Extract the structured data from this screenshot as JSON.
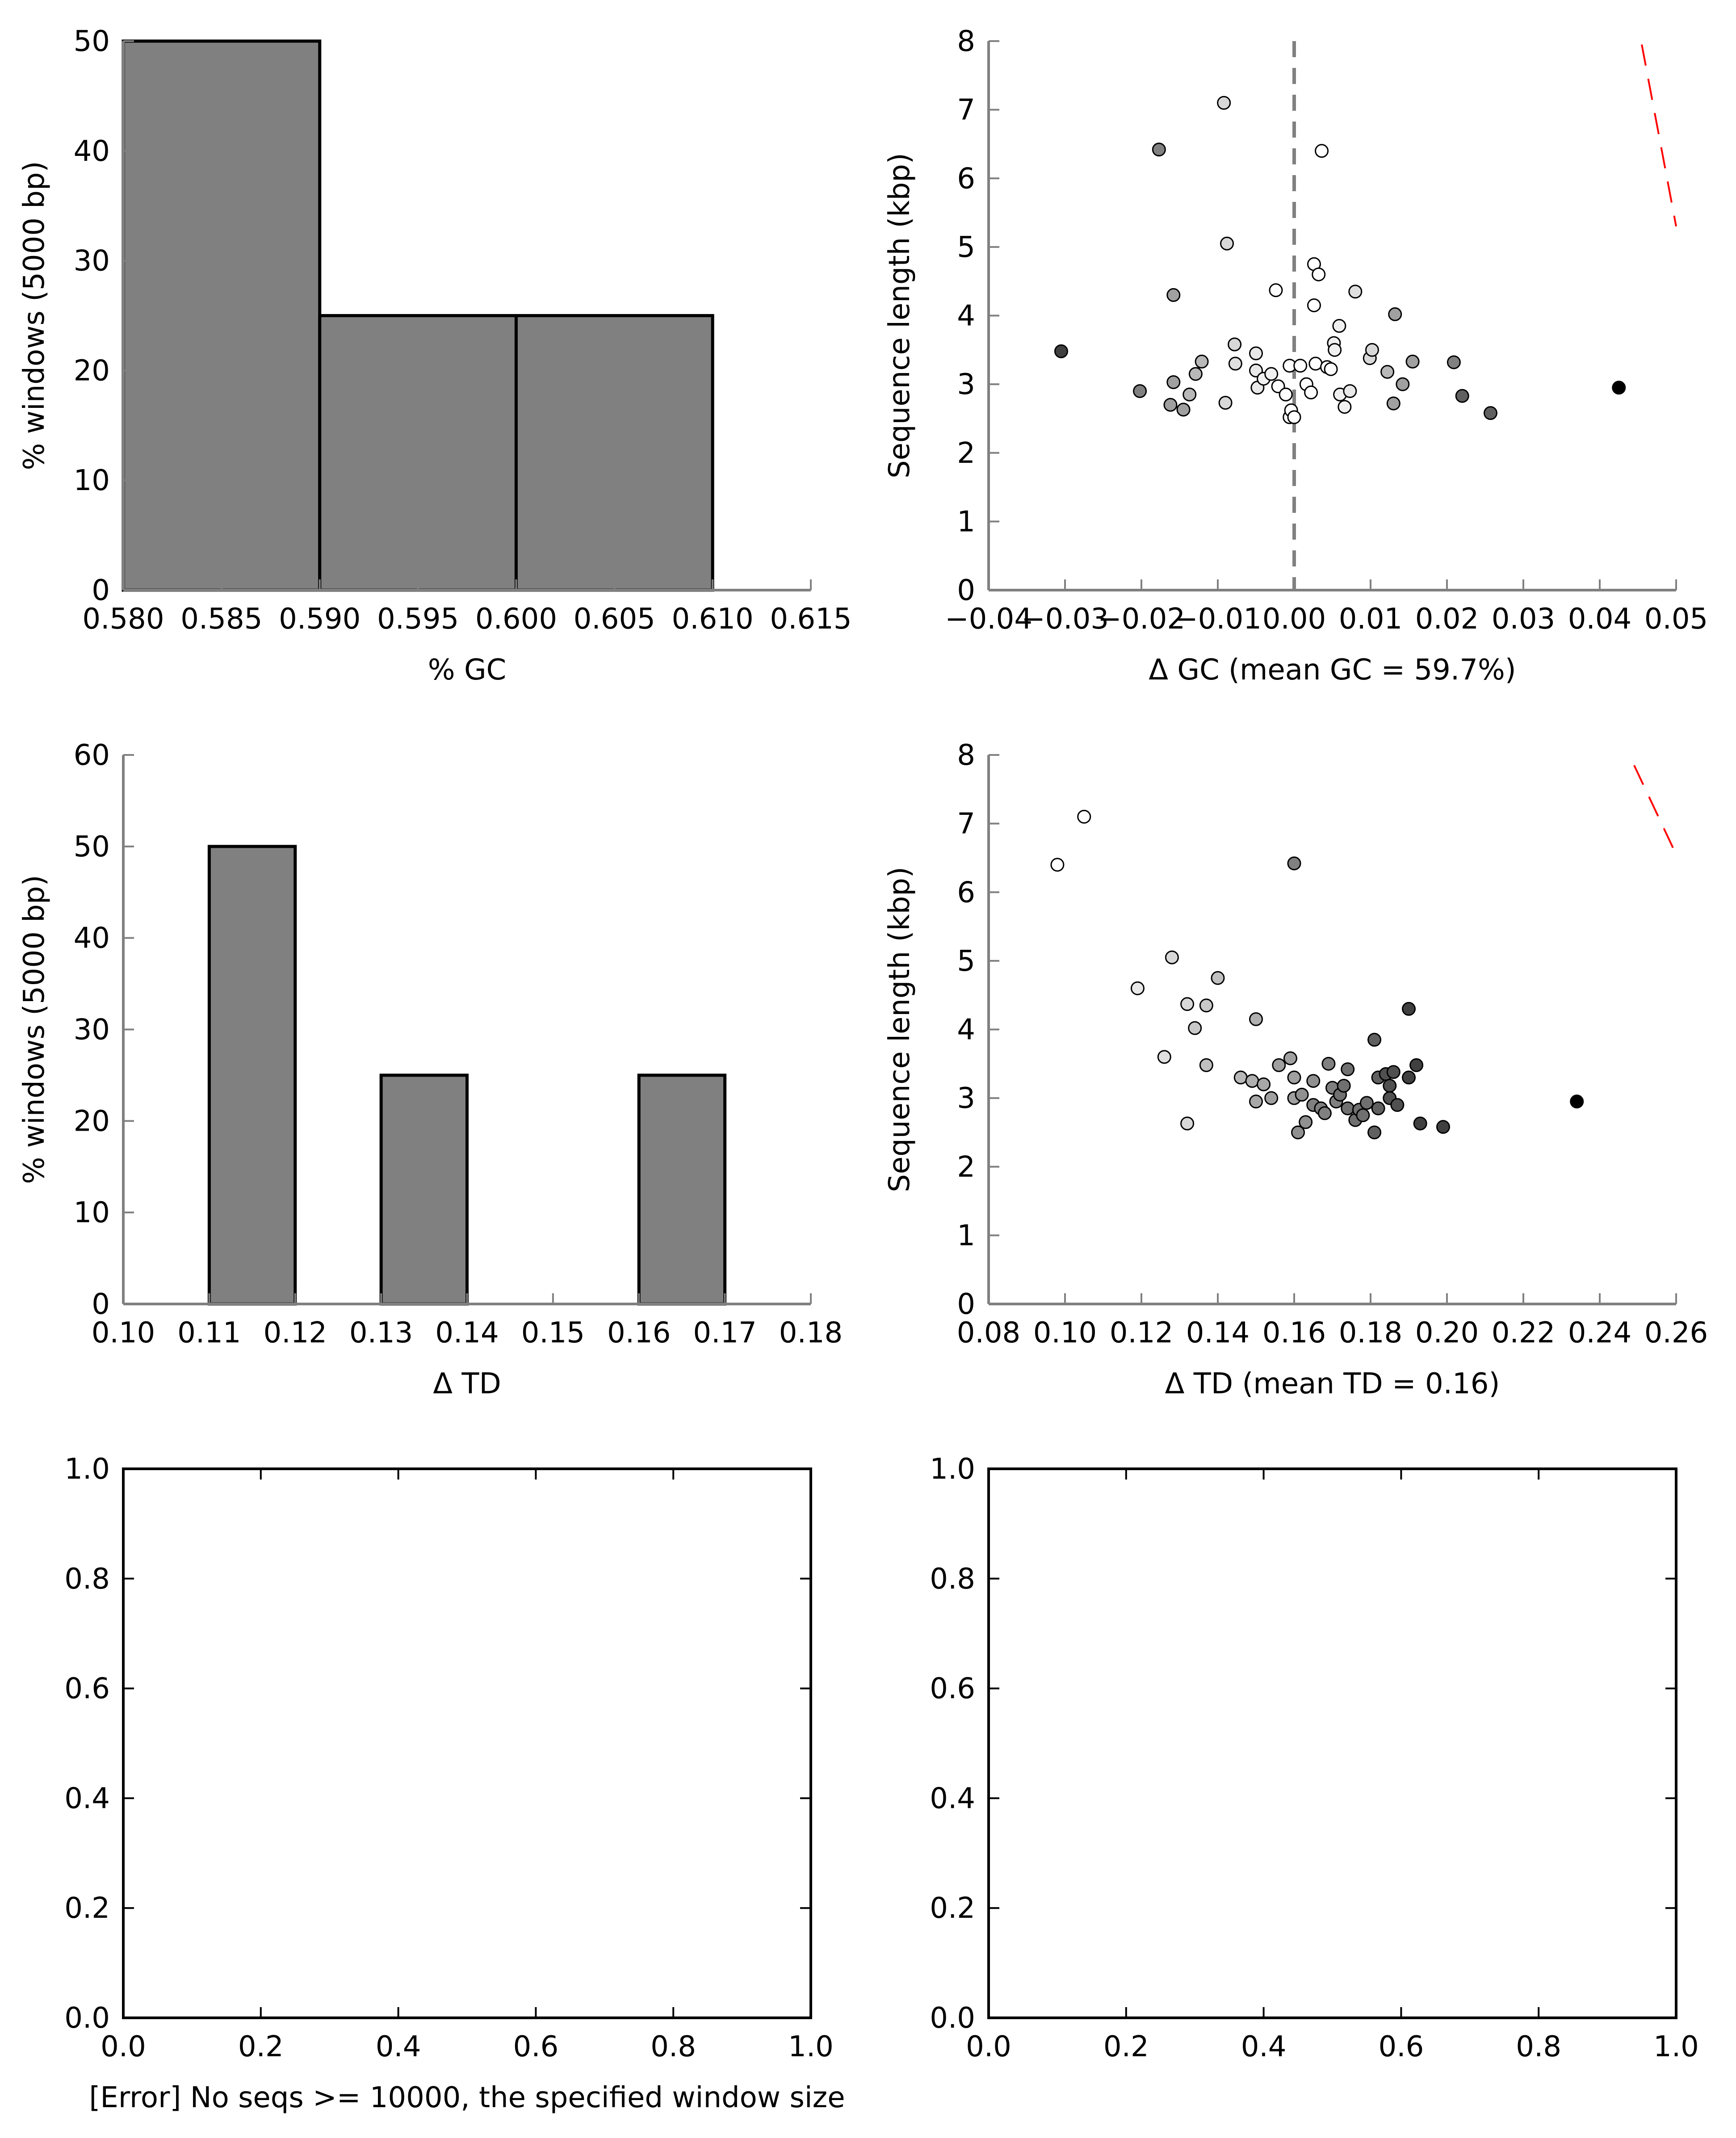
{
  "chart_data": [
    {
      "type": "bar",
      "panel": "gc-histogram",
      "xlabel": "% GC",
      "ylabel": "% windows (5000 bp)",
      "xlim": [
        0.58,
        0.615
      ],
      "ylim": [
        0,
        50
      ],
      "xticks": [
        "0.580",
        "0.585",
        "0.590",
        "0.595",
        "0.600",
        "0.605",
        "0.610",
        "0.615"
      ],
      "yticks": [
        "0",
        "10",
        "20",
        "30",
        "40",
        "50"
      ],
      "bins": [
        {
          "x0": 0.58,
          "x1": 0.59,
          "value": 50
        },
        {
          "x0": 0.59,
          "x1": 0.6,
          "value": 25
        },
        {
          "x0": 0.6,
          "x1": 0.61,
          "value": 25
        }
      ],
      "bar_color": "#808080"
    },
    {
      "type": "scatter",
      "panel": "gc-scatter",
      "xlabel": "Δ GC (mean GC = 59.7%)",
      "ylabel": "Sequence length (kbp)",
      "xlim": [
        -0.04,
        0.05
      ],
      "ylim": [
        0,
        8
      ],
      "xticks": [
        "−0.04",
        "−0.03",
        "−0.02",
        "−0.01",
        "0.00",
        "0.01",
        "0.02",
        "0.03",
        "0.04",
        "0.05"
      ],
      "yticks": [
        "0",
        "1",
        "2",
        "3",
        "4",
        "5",
        "6",
        "7",
        "8"
      ],
      "vline_x": 0.0,
      "trend_line": {
        "color": "#ff0000",
        "points": [
          [
            0.0455,
            7.95
          ],
          [
            0.05,
            5.3
          ]
        ]
      },
      "points": [
        [
          -0.0305,
          3.48,
          "#404040"
        ],
        [
          -0.0202,
          2.9,
          "#808080"
        ],
        [
          -0.0177,
          6.42,
          "#808080"
        ],
        [
          -0.0162,
          2.7,
          "#a0a0a0"
        ],
        [
          -0.0158,
          3.03,
          "#a0a0a0"
        ],
        [
          -0.0158,
          4.3,
          "#a0a0a0"
        ],
        [
          -0.0145,
          2.63,
          "#a0a0a0"
        ],
        [
          -0.0137,
          2.85,
          "#b8b8b8"
        ],
        [
          -0.0129,
          3.15,
          "#b8b8b8"
        ],
        [
          -0.0121,
          3.33,
          "#b8b8b8"
        ],
        [
          -0.0092,
          7.1,
          "#d8d8d8"
        ],
        [
          -0.009,
          2.73,
          "#d8d8d8"
        ],
        [
          -0.0088,
          5.05,
          "#d8d8d8"
        ],
        [
          -0.0078,
          3.58,
          "#d8d8d8"
        ],
        [
          -0.0077,
          3.3,
          "#e0e0e0"
        ],
        [
          -0.005,
          3.45,
          "#e8e8e8"
        ],
        [
          -0.005,
          3.2,
          "#e8e8e8"
        ],
        [
          -0.0048,
          2.95,
          "#e8e8e8"
        ],
        [
          -0.004,
          3.08,
          "#f0f0f0"
        ],
        [
          -0.003,
          3.15,
          "#f0f0f0"
        ],
        [
          -0.0024,
          4.37,
          "#ffffff"
        ],
        [
          -0.0021,
          2.97,
          "#ffffff"
        ],
        [
          -0.0011,
          2.85,
          "#ffffff"
        ],
        [
          -0.0006,
          3.27,
          "#ffffff"
        ],
        [
          -0.0006,
          2.52,
          "#ffffff"
        ],
        [
          -0.0004,
          2.62,
          "#ffffff"
        ],
        [
          0.0,
          2.52,
          "#ffffff"
        ],
        [
          0.0008,
          3.27,
          "#ffffff"
        ],
        [
          0.0016,
          3.0,
          "#ffffff"
        ],
        [
          0.0022,
          2.88,
          "#ffffff"
        ],
        [
          0.0026,
          4.75,
          "#ffffff"
        ],
        [
          0.0026,
          4.15,
          "#ffffff"
        ],
        [
          0.0028,
          3.3,
          "#ffffff"
        ],
        [
          0.0032,
          4.6,
          "#ffffff"
        ],
        [
          0.0036,
          6.4,
          "#ffffff"
        ],
        [
          0.0043,
          3.25,
          "#ffffff"
        ],
        [
          0.0048,
          3.22,
          "#ffffff"
        ],
        [
          0.0052,
          3.6,
          "#f0f0f0"
        ],
        [
          0.0053,
          3.5,
          "#f0f0f0"
        ],
        [
          0.0059,
          3.85,
          "#f0f0f0"
        ],
        [
          0.006,
          2.85,
          "#f0f0f0"
        ],
        [
          0.0066,
          2.67,
          "#f0f0f0"
        ],
        [
          0.0073,
          2.9,
          "#e8e8e8"
        ],
        [
          0.008,
          4.35,
          "#e0e0e0"
        ],
        [
          0.0099,
          3.38,
          "#d8d8d8"
        ],
        [
          0.0102,
          3.5,
          "#d8d8d8"
        ],
        [
          0.0122,
          3.18,
          "#b8b8b8"
        ],
        [
          0.013,
          2.72,
          "#a0a0a0"
        ],
        [
          0.0132,
          4.02,
          "#a0a0a0"
        ],
        [
          0.0142,
          3.0,
          "#a0a0a0"
        ],
        [
          0.0155,
          3.33,
          "#a0a0a0"
        ],
        [
          0.0209,
          3.32,
          "#808080"
        ],
        [
          0.022,
          2.83,
          "#606060"
        ],
        [
          0.0257,
          2.58,
          "#606060"
        ],
        [
          0.0425,
          2.95,
          "#000000"
        ]
      ]
    },
    {
      "type": "bar",
      "panel": "td-histogram",
      "xlabel": "Δ TD",
      "ylabel": "% windows (5000 bp)",
      "xlim": [
        0.1,
        0.18
      ],
      "ylim": [
        0,
        60
      ],
      "xticks": [
        "0.10",
        "0.11",
        "0.12",
        "0.13",
        "0.14",
        "0.15",
        "0.16",
        "0.17",
        "0.18"
      ],
      "yticks": [
        "0",
        "10",
        "20",
        "30",
        "40",
        "50",
        "60"
      ],
      "bins": [
        {
          "x0": 0.11,
          "x1": 0.12,
          "value": 50
        },
        {
          "x0": 0.13,
          "x1": 0.14,
          "value": 25
        },
        {
          "x0": 0.16,
          "x1": 0.17,
          "value": 25
        }
      ],
      "bar_color": "#808080"
    },
    {
      "type": "scatter",
      "panel": "td-scatter",
      "xlabel": "Δ TD (mean TD = 0.16)",
      "ylabel": "Sequence length (kbp)",
      "xlim": [
        0.08,
        0.26
      ],
      "ylim": [
        0,
        8
      ],
      "xticks": [
        "0.08",
        "0.10",
        "0.12",
        "0.14",
        "0.16",
        "0.18",
        "0.20",
        "0.22",
        "0.24",
        "0.26"
      ],
      "yticks": [
        "0",
        "1",
        "2",
        "3",
        "4",
        "5",
        "6",
        "7",
        "8"
      ],
      "trend_line": {
        "color": "#ff0000",
        "points": [
          [
            0.249,
            7.85
          ],
          [
            0.26,
            6.55
          ]
        ]
      },
      "points": [
        [
          0.098,
          6.4,
          "#ffffff"
        ],
        [
          0.105,
          7.1,
          "#ffffff"
        ],
        [
          0.119,
          4.6,
          "#e8e8e8"
        ],
        [
          0.126,
          3.6,
          "#e0e0e0"
        ],
        [
          0.128,
          5.05,
          "#d8d8d8"
        ],
        [
          0.132,
          4.37,
          "#d8d8d8"
        ],
        [
          0.132,
          2.63,
          "#d8d8d8"
        ],
        [
          0.134,
          4.02,
          "#c8c8c8"
        ],
        [
          0.137,
          4.35,
          "#c8c8c8"
        ],
        [
          0.137,
          3.48,
          "#c0c0c0"
        ],
        [
          0.14,
          4.75,
          "#c0c0c0"
        ],
        [
          0.146,
          3.3,
          "#b8b8b8"
        ],
        [
          0.149,
          3.25,
          "#b0b0b0"
        ],
        [
          0.15,
          4.15,
          "#b0b0b0"
        ],
        [
          0.15,
          2.95,
          "#a8a8a8"
        ],
        [
          0.152,
          3.2,
          "#a8a8a8"
        ],
        [
          0.154,
          3.0,
          "#a0a0a0"
        ],
        [
          0.156,
          3.48,
          "#a0a0a0"
        ],
        [
          0.159,
          3.58,
          "#a0a0a0"
        ],
        [
          0.16,
          6.42,
          "#808080"
        ],
        [
          0.16,
          3.3,
          "#a0a0a0"
        ],
        [
          0.16,
          3.0,
          "#a0a0a0"
        ],
        [
          0.161,
          2.5,
          "#909090"
        ],
        [
          0.162,
          3.05,
          "#909090"
        ],
        [
          0.163,
          2.65,
          "#909090"
        ],
        [
          0.165,
          3.25,
          "#909090"
        ],
        [
          0.165,
          2.9,
          "#808080"
        ],
        [
          0.167,
          2.85,
          "#808080"
        ],
        [
          0.168,
          2.78,
          "#808080"
        ],
        [
          0.169,
          3.5,
          "#808080"
        ],
        [
          0.17,
          3.15,
          "#808080"
        ],
        [
          0.171,
          2.95,
          "#808080"
        ],
        [
          0.172,
          3.05,
          "#707070"
        ],
        [
          0.173,
          3.18,
          "#707070"
        ],
        [
          0.174,
          3.42,
          "#707070"
        ],
        [
          0.174,
          2.85,
          "#707070"
        ],
        [
          0.176,
          2.68,
          "#707070"
        ],
        [
          0.177,
          2.83,
          "#707070"
        ],
        [
          0.178,
          2.75,
          "#707070"
        ],
        [
          0.179,
          2.93,
          "#707070"
        ],
        [
          0.181,
          3.85,
          "#606060"
        ],
        [
          0.181,
          2.5,
          "#606060"
        ],
        [
          0.182,
          3.3,
          "#606060"
        ],
        [
          0.182,
          2.85,
          "#606060"
        ],
        [
          0.184,
          3.35,
          "#505050"
        ],
        [
          0.185,
          3.18,
          "#505050"
        ],
        [
          0.185,
          3.0,
          "#505050"
        ],
        [
          0.186,
          3.38,
          "#505050"
        ],
        [
          0.187,
          2.9,
          "#505050"
        ],
        [
          0.19,
          4.3,
          "#404040"
        ],
        [
          0.19,
          3.3,
          "#404040"
        ],
        [
          0.192,
          3.48,
          "#404040"
        ],
        [
          0.193,
          2.63,
          "#404040"
        ],
        [
          0.199,
          2.58,
          "#404040"
        ],
        [
          0.234,
          2.95,
          "#000000"
        ]
      ]
    },
    {
      "type": "scatter",
      "panel": "empty-left",
      "xlabel": "[Error] No seqs >= 10000, the specified window size",
      "ylabel": "",
      "xlim": [
        0,
        1
      ],
      "ylim": [
        0,
        1
      ],
      "xticks": [
        "0.0",
        "0.2",
        "0.4",
        "0.6",
        "0.8",
        "1.0"
      ],
      "yticks": [
        "0.0",
        "0.2",
        "0.4",
        "0.6",
        "0.8",
        "1.0"
      ],
      "points": []
    },
    {
      "type": "scatter",
      "panel": "empty-right",
      "xlabel": "",
      "ylabel": "",
      "xlim": [
        0,
        1
      ],
      "ylim": [
        0,
        1
      ],
      "xticks": [
        "0.0",
        "0.2",
        "0.4",
        "0.6",
        "0.8",
        "1.0"
      ],
      "yticks": [
        "0.0",
        "0.2",
        "0.4",
        "0.6",
        "0.8",
        "1.0"
      ],
      "points": []
    }
  ]
}
